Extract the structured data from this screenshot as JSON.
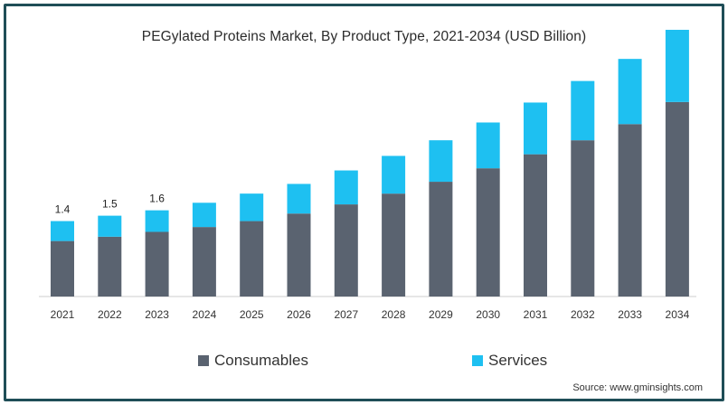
{
  "chart_data": {
    "type": "bar",
    "stacked": true,
    "title": "PEGylated Proteins Market, By Product Type, 2021-2034 (USD Billion)",
    "categories": [
      "2021",
      "2022",
      "2023",
      "2024",
      "2025",
      "2026",
      "2027",
      "2028",
      "2029",
      "2030",
      "2031",
      "2032",
      "2033",
      "2034"
    ],
    "series": [
      {
        "name": "Consumables",
        "color": "#5a6370",
        "values": [
          1.03,
          1.11,
          1.2,
          1.29,
          1.4,
          1.54,
          1.71,
          1.91,
          2.13,
          2.38,
          2.64,
          2.9,
          3.2,
          3.61
        ]
      },
      {
        "name": "Services",
        "color": "#1ec0f1",
        "values": [
          0.37,
          0.39,
          0.4,
          0.45,
          0.51,
          0.55,
          0.63,
          0.7,
          0.77,
          0.85,
          0.96,
          1.1,
          1.21,
          1.34
        ]
      }
    ],
    "data_labels": [
      {
        "category": "2021",
        "text": "1.4"
      },
      {
        "category": "2022",
        "text": "1.5"
      },
      {
        "category": "2023",
        "text": "1.6"
      }
    ],
    "ylim": [
      0,
      5.0
    ],
    "grid": false,
    "legend_position": "bottom"
  },
  "source": "Source: www.gminsights.com"
}
